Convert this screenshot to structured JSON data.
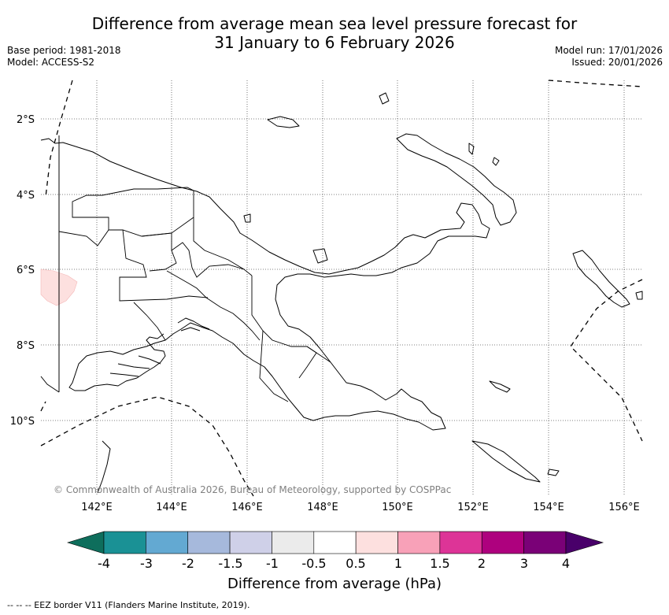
{
  "title": {
    "line1": "Difference from average mean sea level pressure forecast for",
    "line2": "31 January to 6 February 2026"
  },
  "meta": {
    "base_period": "Base period: 1981-2018",
    "model": "Model: ACCESS-S2",
    "model_run": "Model run: 17/01/2026",
    "issued": "Issued: 20/01/2026"
  },
  "map": {
    "lon_labels": [
      "142°E",
      "144°E",
      "146°E",
      "148°E",
      "150°E",
      "152°E",
      "154°E",
      "156°E"
    ],
    "lat_labels": [
      "2°S",
      "4°S",
      "6°S",
      "8°S",
      "10°S"
    ],
    "copyright": "© Commonwealth of Australia 2026, Bureau of Meteorology, supported by COSPPac",
    "anomaly_patch": {
      "label": "0.5 to 1",
      "color": "#fde0df"
    }
  },
  "colorbar": {
    "title": "Difference from average (hPa)",
    "tick_labels": [
      "-4",
      "-3",
      "-2",
      "-1.5",
      "-1",
      "-0.5",
      "0.5",
      "1",
      "1.5",
      "2",
      "3",
      "4"
    ],
    "colors": {
      "under": "#0e6e5c",
      "bins": [
        "#1a9195",
        "#63a9d2",
        "#a6b9dc",
        "#cfd0e8",
        "#ebebeb",
        "#ffffff",
        "#fde0df",
        "#f8a1b8",
        "#dd3497",
        "#ae017e",
        "#7a0177"
      ],
      "over": "#49006a"
    }
  },
  "footer": "--  --  -- EEZ border V11 (Flanders Marine Institute, 2019)."
}
